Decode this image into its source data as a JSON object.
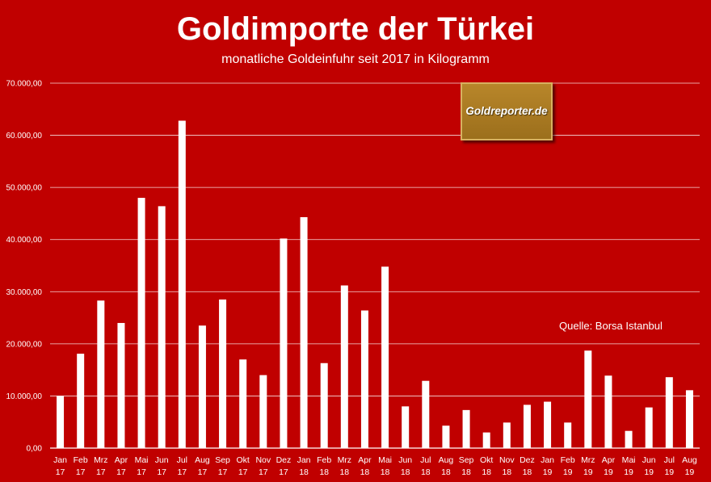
{
  "chart_data": {
    "type": "bar",
    "title": "Goldimporte der Türkei",
    "subtitle": "monatliche Goldeinfuhr seit 2017 in Kilogramm",
    "source": "Quelle: Borsa Istanbul",
    "logo_text": "Goldreporter.de",
    "xlabel": "",
    "ylabel": "",
    "ylim": [
      0,
      70000
    ],
    "yticks": [
      0,
      10000,
      20000,
      30000,
      40000,
      50000,
      60000,
      70000
    ],
    "ytick_labels": [
      "0,00",
      "10.000,00",
      "20.000,00",
      "30.000,00",
      "40.000,00",
      "50.000,00",
      "60.000,00",
      "70.000,00"
    ],
    "grid": true,
    "legend": "none",
    "categories": [
      {
        "month": "Jan",
        "year": "17"
      },
      {
        "month": "Feb",
        "year": "17"
      },
      {
        "month": "Mrz",
        "year": "17"
      },
      {
        "month": "Apr",
        "year": "17"
      },
      {
        "month": "Mai",
        "year": "17"
      },
      {
        "month": "Jun",
        "year": "17"
      },
      {
        "month": "Jul",
        "year": "17"
      },
      {
        "month": "Aug",
        "year": "17"
      },
      {
        "month": "Sep",
        "year": "17"
      },
      {
        "month": "Okt",
        "year": "17"
      },
      {
        "month": "Nov",
        "year": "17"
      },
      {
        "month": "Dez",
        "year": "17"
      },
      {
        "month": "Jan",
        "year": "18"
      },
      {
        "month": "Feb",
        "year": "18"
      },
      {
        "month": "Mrz",
        "year": "18"
      },
      {
        "month": "Apr",
        "year": "18"
      },
      {
        "month": "Mai",
        "year": "18"
      },
      {
        "month": "Jun",
        "year": "18"
      },
      {
        "month": "Jul",
        "year": "18"
      },
      {
        "month": "Aug",
        "year": "18"
      },
      {
        "month": "Sep",
        "year": "18"
      },
      {
        "month": "Okt",
        "year": "18"
      },
      {
        "month": "Nov",
        "year": "18"
      },
      {
        "month": "Dez",
        "year": "18"
      },
      {
        "month": "Jan",
        "year": "19"
      },
      {
        "month": "Feb",
        "year": "19"
      },
      {
        "month": "Mrz",
        "year": "19"
      },
      {
        "month": "Apr",
        "year": "19"
      },
      {
        "month": "Mai",
        "year": "19"
      },
      {
        "month": "Jun",
        "year": "19"
      },
      {
        "month": "Jul",
        "year": "19"
      },
      {
        "month": "Aug",
        "year": "19"
      }
    ],
    "values": [
      10000,
      18100,
      28300,
      24000,
      48000,
      46400,
      62800,
      23500,
      28500,
      17000,
      14000,
      40200,
      44300,
      16300,
      31200,
      26400,
      34800,
      8000,
      12900,
      4300,
      7300,
      3000,
      4900,
      8300,
      8900,
      4900,
      18700,
      13900,
      3300,
      7800,
      13600,
      11100
    ],
    "colors": {
      "background": "#c00000",
      "bar": "#ffffff",
      "grid": "#ffffff",
      "logo": "#a8781f"
    }
  }
}
